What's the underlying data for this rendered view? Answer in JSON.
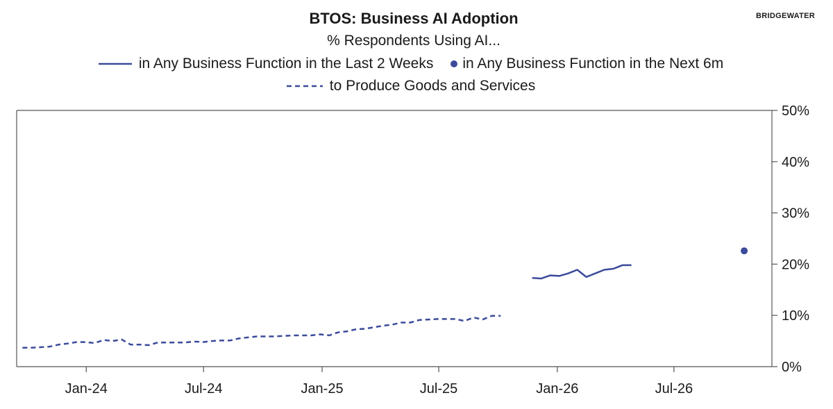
{
  "header": {
    "title": "BTOS: Business AI Adoption",
    "subtitle": "% Respondents Using AI...",
    "brand": "BRIDGEWATER"
  },
  "colors": {
    "series": "#3b4a9a",
    "axis": "#555555",
    "text": "#1a1a1a"
  },
  "chart_data": {
    "type": "line",
    "title": "BTOS: Business AI Adoption",
    "subtitle": "% Respondents Using AI...",
    "x_axis": {
      "type": "date",
      "range": [
        "2023-09-15",
        "2026-11-30"
      ],
      "ticks": [
        {
          "date": "2024-01-01",
          "label": "Jan-24"
        },
        {
          "date": "2024-07-01",
          "label": "Jul-24"
        },
        {
          "date": "2025-01-01",
          "label": "Jan-25"
        },
        {
          "date": "2025-07-01",
          "label": "Jul-25"
        },
        {
          "date": "2026-01-01",
          "label": "Jan-26"
        },
        {
          "date": "2026-07-01",
          "label": "Jul-26"
        }
      ]
    },
    "y_axis": {
      "position": "right",
      "range": [
        0,
        50
      ],
      "ticks": [
        {
          "value": 0,
          "label": "0%"
        },
        {
          "value": 10,
          "label": "10%"
        },
        {
          "value": 20,
          "label": "20%"
        },
        {
          "value": 30,
          "label": "30%"
        },
        {
          "value": 40,
          "label": "40%"
        },
        {
          "value": 50,
          "label": "50%"
        }
      ]
    },
    "grid": false,
    "legend_position": "top",
    "series": [
      {
        "name": "in Any Business Function in the Last 2 Weeks",
        "style": "solid",
        "points": [
          [
            "2025-11-23",
            17.3
          ],
          [
            "2025-12-07",
            17.2
          ],
          [
            "2025-12-21",
            17.8
          ],
          [
            "2026-01-04",
            17.7
          ],
          [
            "2026-01-18",
            18.2
          ],
          [
            "2026-02-01",
            18.9
          ],
          [
            "2026-02-15",
            17.5
          ],
          [
            "2026-03-01",
            18.2
          ],
          [
            "2026-03-15",
            18.9
          ],
          [
            "2026-03-29",
            19.1
          ],
          [
            "2026-04-12",
            19.8
          ],
          [
            "2026-04-26",
            19.8
          ]
        ]
      },
      {
        "name": "in Any Business Function in the Next 6m",
        "style": "point",
        "points": [
          [
            "2026-10-18",
            22.6
          ]
        ]
      },
      {
        "name": "to Produce Goods and Services",
        "style": "dashed",
        "points": [
          [
            "2023-09-24",
            3.7
          ],
          [
            "2023-10-08",
            3.7
          ],
          [
            "2023-10-22",
            3.8
          ],
          [
            "2023-11-05",
            3.9
          ],
          [
            "2023-11-19",
            4.3
          ],
          [
            "2023-12-03",
            4.5
          ],
          [
            "2023-12-17",
            4.8
          ],
          [
            "2023-12-31",
            4.8
          ],
          [
            "2024-01-14",
            4.6
          ],
          [
            "2024-01-28",
            5.2
          ],
          [
            "2024-02-11",
            5.0
          ],
          [
            "2024-02-25",
            5.3
          ],
          [
            "2024-03-10",
            4.3
          ],
          [
            "2024-03-24",
            4.3
          ],
          [
            "2024-04-07",
            4.2
          ],
          [
            "2024-04-21",
            4.7
          ],
          [
            "2024-05-05",
            4.7
          ],
          [
            "2024-05-19",
            4.7
          ],
          [
            "2024-06-02",
            4.7
          ],
          [
            "2024-06-16",
            4.9
          ],
          [
            "2024-06-30",
            4.8
          ],
          [
            "2024-07-14",
            5.0
          ],
          [
            "2024-07-28",
            5.1
          ],
          [
            "2024-08-11",
            5.1
          ],
          [
            "2024-08-25",
            5.5
          ],
          [
            "2024-09-08",
            5.7
          ],
          [
            "2024-09-22",
            5.9
          ],
          [
            "2024-10-06",
            5.9
          ],
          [
            "2024-10-20",
            5.9
          ],
          [
            "2024-11-03",
            6.0
          ],
          [
            "2024-11-17",
            6.1
          ],
          [
            "2024-12-01",
            6.1
          ],
          [
            "2024-12-15",
            6.1
          ],
          [
            "2024-12-29",
            6.3
          ],
          [
            "2025-01-12",
            6.1
          ],
          [
            "2025-01-26",
            6.7
          ],
          [
            "2025-02-09",
            6.9
          ],
          [
            "2025-02-23",
            7.3
          ],
          [
            "2025-03-09",
            7.4
          ],
          [
            "2025-03-23",
            7.7
          ],
          [
            "2025-04-06",
            8.0
          ],
          [
            "2025-04-20",
            8.2
          ],
          [
            "2025-05-04",
            8.6
          ],
          [
            "2025-05-18",
            8.6
          ],
          [
            "2025-06-01",
            9.1
          ],
          [
            "2025-06-15",
            9.2
          ],
          [
            "2025-06-29",
            9.3
          ],
          [
            "2025-07-13",
            9.3
          ],
          [
            "2025-07-27",
            9.3
          ],
          [
            "2025-08-10",
            8.9
          ],
          [
            "2025-08-24",
            9.6
          ],
          [
            "2025-09-07",
            9.2
          ],
          [
            "2025-09-21",
            9.9
          ],
          [
            "2025-10-05",
            9.9
          ]
        ]
      }
    ]
  }
}
